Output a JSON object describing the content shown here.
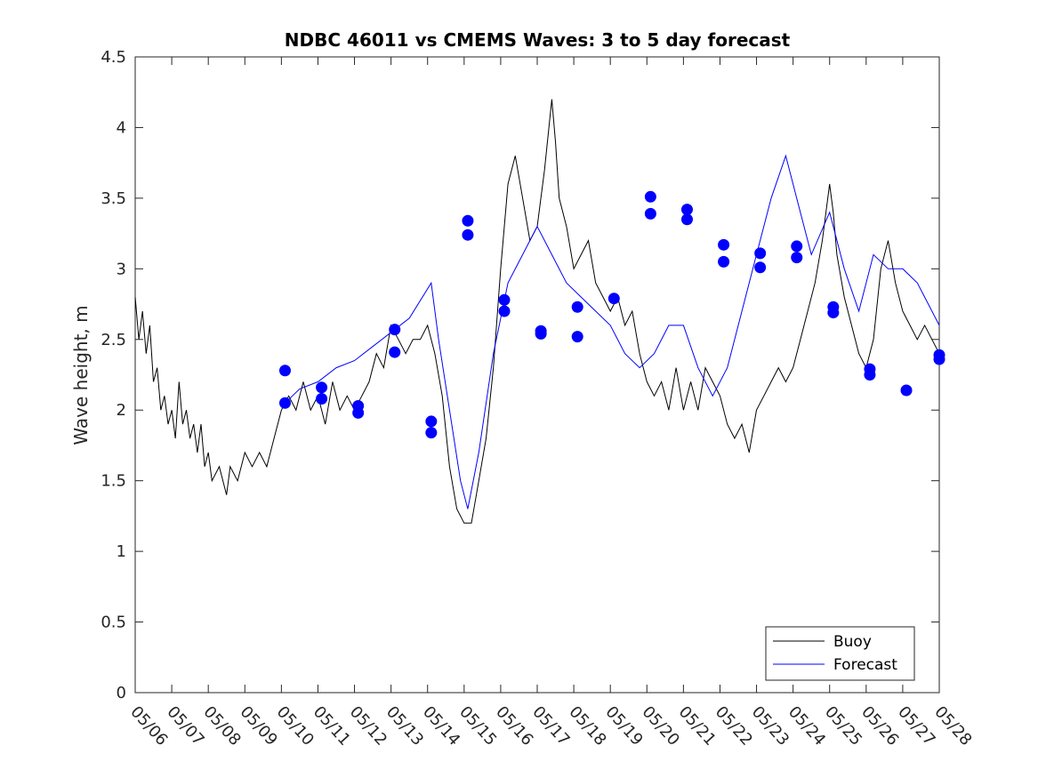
{
  "chart_data": {
    "type": "line",
    "title": "NDBC 46011 vs CMEMS Waves: 3 to 5 day forecast",
    "xlabel": "",
    "ylabel": "Wave height, m",
    "x_ticks": [
      "05/06",
      "05/07",
      "05/08",
      "05/09",
      "05/10",
      "05/11",
      "05/12",
      "05/13",
      "05/14",
      "05/15",
      "05/16",
      "05/17",
      "05/18",
      "05/19",
      "05/20",
      "05/21",
      "05/22",
      "05/23",
      "05/24",
      "05/25",
      "05/26",
      "05/27",
      "05/28"
    ],
    "y_ticks": [
      "0",
      "0.5",
      "1",
      "1.5",
      "2",
      "2.5",
      "3",
      "3.5",
      "4",
      "4.5"
    ],
    "xlim_days": [
      0,
      22
    ],
    "ylim": [
      0,
      4.5
    ],
    "grid": false,
    "legend_position": "bottom-right",
    "series": [
      {
        "name": "Buoy",
        "color": "#000000",
        "points": [
          [
            0,
            2.8
          ],
          [
            0.1,
            2.5
          ],
          [
            0.2,
            2.7
          ],
          [
            0.3,
            2.4
          ],
          [
            0.4,
            2.6
          ],
          [
            0.5,
            2.2
          ],
          [
            0.6,
            2.3
          ],
          [
            0.7,
            2.0
          ],
          [
            0.8,
            2.1
          ],
          [
            0.9,
            1.9
          ],
          [
            1.0,
            2.0
          ],
          [
            1.1,
            1.8
          ],
          [
            1.2,
            2.2
          ],
          [
            1.3,
            1.9
          ],
          [
            1.4,
            2.0
          ],
          [
            1.5,
            1.8
          ],
          [
            1.6,
            1.9
          ],
          [
            1.7,
            1.7
          ],
          [
            1.8,
            1.9
          ],
          [
            1.9,
            1.6
          ],
          [
            2.0,
            1.7
          ],
          [
            2.1,
            1.5
          ],
          [
            2.3,
            1.6
          ],
          [
            2.5,
            1.4
          ],
          [
            2.6,
            1.6
          ],
          [
            2.8,
            1.5
          ],
          [
            3.0,
            1.7
          ],
          [
            3.2,
            1.6
          ],
          [
            3.4,
            1.7
          ],
          [
            3.6,
            1.6
          ],
          [
            3.8,
            1.8
          ],
          [
            4.0,
            2.0
          ],
          [
            4.2,
            2.1
          ],
          [
            4.4,
            2.0
          ],
          [
            4.6,
            2.2
          ],
          [
            4.8,
            2.0
          ],
          [
            5.0,
            2.1
          ],
          [
            5.2,
            1.9
          ],
          [
            5.4,
            2.2
          ],
          [
            5.6,
            2.0
          ],
          [
            5.8,
            2.1
          ],
          [
            6.0,
            2.0
          ],
          [
            6.2,
            2.1
          ],
          [
            6.4,
            2.2
          ],
          [
            6.6,
            2.4
          ],
          [
            6.8,
            2.3
          ],
          [
            7.0,
            2.6
          ],
          [
            7.2,
            2.5
          ],
          [
            7.4,
            2.4
          ],
          [
            7.6,
            2.5
          ],
          [
            7.8,
            2.5
          ],
          [
            8.0,
            2.6
          ],
          [
            8.2,
            2.4
          ],
          [
            8.4,
            2.1
          ],
          [
            8.6,
            1.6
          ],
          [
            8.8,
            1.3
          ],
          [
            9.0,
            1.2
          ],
          [
            9.2,
            1.2
          ],
          [
            9.4,
            1.5
          ],
          [
            9.6,
            1.8
          ],
          [
            9.8,
            2.3
          ],
          [
            10.0,
            3.0
          ],
          [
            10.2,
            3.6
          ],
          [
            10.4,
            3.8
          ],
          [
            10.6,
            3.5
          ],
          [
            10.8,
            3.2
          ],
          [
            11.0,
            3.3
          ],
          [
            11.2,
            3.7
          ],
          [
            11.4,
            4.2
          ],
          [
            11.5,
            3.9
          ],
          [
            11.6,
            3.5
          ],
          [
            11.8,
            3.3
          ],
          [
            12.0,
            3.0
          ],
          [
            12.2,
            3.1
          ],
          [
            12.4,
            3.2
          ],
          [
            12.6,
            2.9
          ],
          [
            12.8,
            2.8
          ],
          [
            13.0,
            2.7
          ],
          [
            13.2,
            2.8
          ],
          [
            13.4,
            2.6
          ],
          [
            13.6,
            2.7
          ],
          [
            13.8,
            2.4
          ],
          [
            14.0,
            2.2
          ],
          [
            14.2,
            2.1
          ],
          [
            14.4,
            2.2
          ],
          [
            14.6,
            2.0
          ],
          [
            14.8,
            2.3
          ],
          [
            15.0,
            2.0
          ],
          [
            15.2,
            2.2
          ],
          [
            15.4,
            2.0
          ],
          [
            15.6,
            2.3
          ],
          [
            15.8,
            2.2
          ],
          [
            16.0,
            2.1
          ],
          [
            16.2,
            1.9
          ],
          [
            16.4,
            1.8
          ],
          [
            16.6,
            1.9
          ],
          [
            16.8,
            1.7
          ],
          [
            17.0,
            2.0
          ],
          [
            17.2,
            2.1
          ],
          [
            17.4,
            2.2
          ],
          [
            17.6,
            2.3
          ],
          [
            17.8,
            2.2
          ],
          [
            18.0,
            2.3
          ],
          [
            18.2,
            2.5
          ],
          [
            18.4,
            2.7
          ],
          [
            18.6,
            2.9
          ],
          [
            18.8,
            3.2
          ],
          [
            19.0,
            3.6
          ],
          [
            19.1,
            3.4
          ],
          [
            19.2,
            3.1
          ],
          [
            19.4,
            2.8
          ],
          [
            19.6,
            2.6
          ],
          [
            19.8,
            2.4
          ],
          [
            20.0,
            2.3
          ],
          [
            20.2,
            2.5
          ],
          [
            20.4,
            3.0
          ],
          [
            20.6,
            3.2
          ],
          [
            20.8,
            2.9
          ],
          [
            21.0,
            2.7
          ],
          [
            21.2,
            2.6
          ],
          [
            21.4,
            2.5
          ],
          [
            21.6,
            2.6
          ],
          [
            21.8,
            2.5
          ],
          [
            22.0,
            2.4
          ]
        ]
      },
      {
        "name": "Forecast",
        "color": "#0000ff",
        "points": [
          [
            4.1,
            2.05
          ],
          [
            4.5,
            2.15
          ],
          [
            5.0,
            2.2
          ],
          [
            5.5,
            2.3
          ],
          [
            6.0,
            2.35
          ],
          [
            6.5,
            2.45
          ],
          [
            7.0,
            2.55
          ],
          [
            7.5,
            2.65
          ],
          [
            8.1,
            2.9
          ],
          [
            8.3,
            2.5
          ],
          [
            8.6,
            2.0
          ],
          [
            8.9,
            1.5
          ],
          [
            9.1,
            1.3
          ],
          [
            9.4,
            1.7
          ],
          [
            9.8,
            2.4
          ],
          [
            10.2,
            2.9
          ],
          [
            10.6,
            3.1
          ],
          [
            11.0,
            3.3
          ],
          [
            11.4,
            3.1
          ],
          [
            11.8,
            2.9
          ],
          [
            12.2,
            2.8
          ],
          [
            12.6,
            2.7
          ],
          [
            13.0,
            2.6
          ],
          [
            13.4,
            2.4
          ],
          [
            13.8,
            2.3
          ],
          [
            14.2,
            2.4
          ],
          [
            14.6,
            2.6
          ],
          [
            15.0,
            2.6
          ],
          [
            15.4,
            2.3
          ],
          [
            15.8,
            2.1
          ],
          [
            16.2,
            2.3
          ],
          [
            16.6,
            2.7
          ],
          [
            17.0,
            3.1
          ],
          [
            17.4,
            3.5
          ],
          [
            17.8,
            3.8
          ],
          [
            18.1,
            3.5
          ],
          [
            18.5,
            3.1
          ],
          [
            19.0,
            3.4
          ],
          [
            19.4,
            3.0
          ],
          [
            19.8,
            2.7
          ],
          [
            20.2,
            3.1
          ],
          [
            20.6,
            3.0
          ],
          [
            21.0,
            3.0
          ],
          [
            21.4,
            2.9
          ],
          [
            21.8,
            2.7
          ],
          [
            22.0,
            2.6
          ]
        ]
      }
    ],
    "forecast_markers": [
      [
        4.1,
        2.28
      ],
      [
        4.1,
        2.05
      ],
      [
        5.1,
        2.16
      ],
      [
        5.1,
        2.08
      ],
      [
        6.1,
        2.03
      ],
      [
        6.1,
        1.98
      ],
      [
        7.1,
        2.57
      ],
      [
        7.1,
        2.41
      ],
      [
        8.1,
        1.92
      ],
      [
        8.1,
        1.84
      ],
      [
        9.1,
        3.34
      ],
      [
        9.1,
        3.24
      ],
      [
        10.1,
        2.78
      ],
      [
        10.1,
        2.7
      ],
      [
        11.1,
        2.56
      ],
      [
        11.1,
        2.54
      ],
      [
        12.1,
        2.73
      ],
      [
        12.1,
        2.52
      ],
      [
        13.1,
        2.79
      ],
      [
        14.1,
        3.51
      ],
      [
        14.1,
        3.39
      ],
      [
        15.1,
        3.42
      ],
      [
        15.1,
        3.35
      ],
      [
        16.1,
        3.17
      ],
      [
        16.1,
        3.05
      ],
      [
        17.1,
        3.11
      ],
      [
        17.1,
        3.01
      ],
      [
        18.1,
        3.16
      ],
      [
        18.1,
        3.08
      ],
      [
        19.1,
        2.73
      ],
      [
        19.1,
        2.69
      ],
      [
        20.1,
        2.29
      ],
      [
        20.1,
        2.25
      ],
      [
        21.1,
        2.14
      ],
      [
        22.0,
        2.39
      ],
      [
        22.0,
        2.36
      ]
    ]
  }
}
